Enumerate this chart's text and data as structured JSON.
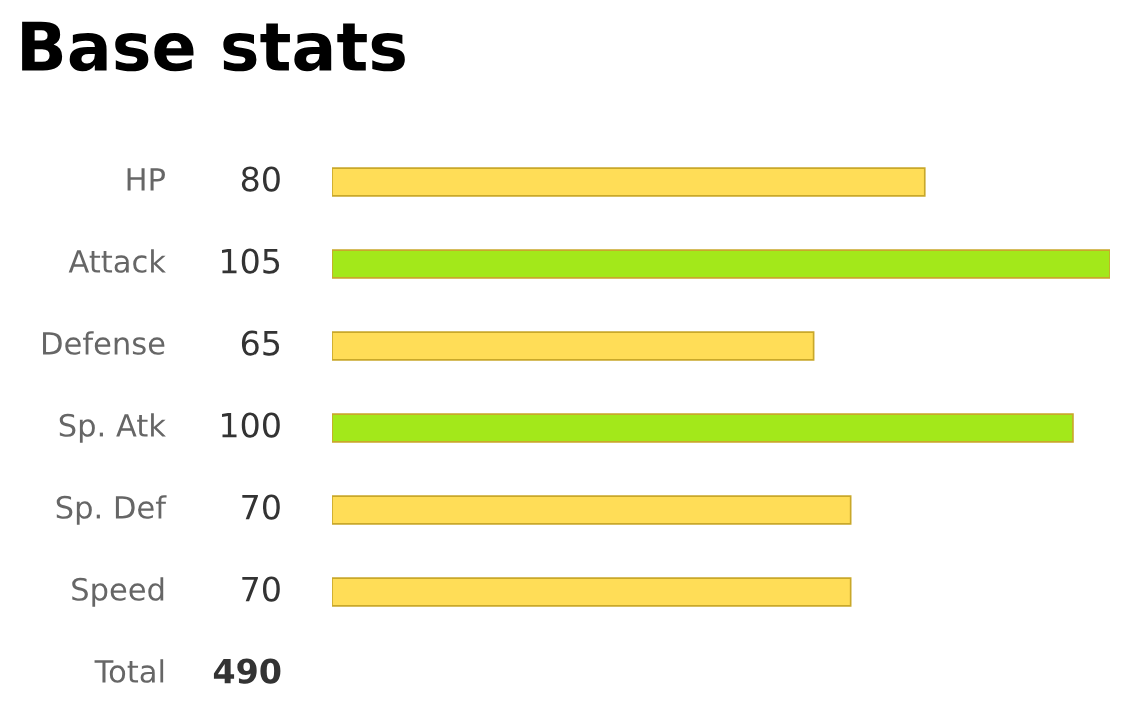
{
  "chart_data": {
    "type": "bar",
    "orientation": "horizontal",
    "title": "Base stats",
    "categories": [
      "HP",
      "Attack",
      "Defense",
      "Sp. Atk",
      "Sp. Def",
      "Speed"
    ],
    "values": [
      80,
      105,
      65,
      100,
      70,
      70
    ],
    "colors": [
      "#ffdd57",
      "#a3e81a",
      "#ffdd57",
      "#a3e81a",
      "#ffdd57",
      "#ffdd57"
    ],
    "data_labels": true,
    "annotations": [
      "Total",
      "490"
    ]
  }
}
